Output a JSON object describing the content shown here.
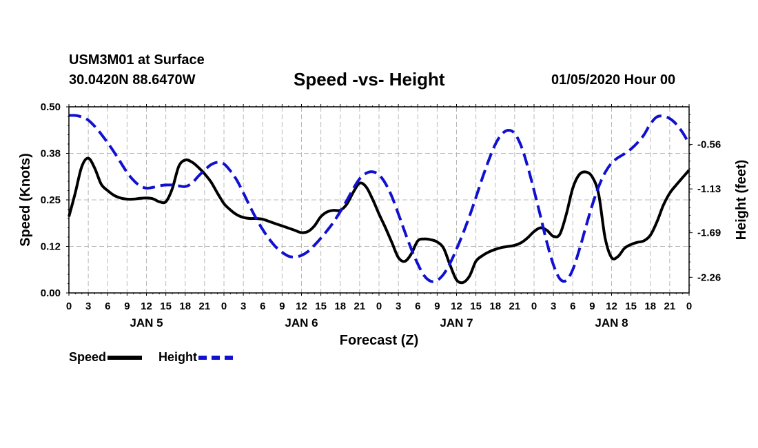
{
  "header": {
    "station": "USM3M01 at Surface",
    "coords": "30.0420N 88.6470W",
    "title": "Speed -vs- Height",
    "runtime": "01/05/2020 Hour 00"
  },
  "legend": {
    "speed_label": "Speed",
    "height_label": "Height"
  },
  "colors": {
    "speed": "#000000",
    "height": "#1010d0",
    "grid": "#b8b8b8"
  },
  "chart_data": {
    "type": "line",
    "title": "Speed -vs- Height",
    "xlabel": "Forecast (Z)",
    "ylabel": "Speed (Knots)",
    "y2label": "Height (feet)",
    "xlim": [
      0,
      96
    ],
    "ylim": [
      0,
      0.5
    ],
    "y2lim": [
      -2.46,
      -0.08
    ],
    "x_ticks": [
      0,
      3,
      6,
      9,
      12,
      15,
      18,
      21,
      24,
      27,
      30,
      33,
      36,
      39,
      42,
      45,
      48,
      51,
      54,
      57,
      60,
      63,
      66,
      69,
      72,
      75,
      78,
      81,
      84,
      87,
      90,
      93,
      96
    ],
    "x_tick_labels": [
      "0",
      "3",
      "6",
      "9",
      "12",
      "15",
      "18",
      "21",
      "0",
      "3",
      "6",
      "9",
      "12",
      "15",
      "18",
      "21",
      "0",
      "3",
      "6",
      "9",
      "12",
      "15",
      "18",
      "21",
      "0",
      "3",
      "6",
      "9",
      "12",
      "15",
      "18",
      "21",
      "0"
    ],
    "day_labels": [
      {
        "x": 12,
        "label": "JAN 5"
      },
      {
        "x": 36,
        "label": "JAN 6"
      },
      {
        "x": 60,
        "label": "JAN 7"
      },
      {
        "x": 84,
        "label": "JAN 8"
      }
    ],
    "y_ticks": [
      0.0,
      0.125,
      0.25,
      0.375,
      0.5
    ],
    "y_tick_labels": [
      "0.00",
      "0.12",
      "0.25",
      "0.38",
      "0.50"
    ],
    "y2_ticks": [
      -2.26,
      -1.69,
      -1.13,
      -0.56
    ],
    "y2_tick_labels": [
      "-2.26",
      "-1.69",
      "-1.13",
      "-0.56"
    ],
    "grid": true,
    "legend_position": "bottom-left",
    "series": [
      {
        "name": "Speed",
        "axis": "left",
        "style": "solid",
        "points": [
          [
            0,
            0.205
          ],
          [
            1,
            0.27
          ],
          [
            2,
            0.34
          ],
          [
            3,
            0.362
          ],
          [
            4,
            0.335
          ],
          [
            5,
            0.292
          ],
          [
            6,
            0.275
          ],
          [
            7,
            0.262
          ],
          [
            8,
            0.255
          ],
          [
            9,
            0.252
          ],
          [
            10,
            0.252
          ],
          [
            11,
            0.254
          ],
          [
            12,
            0.255
          ],
          [
            13,
            0.253
          ],
          [
            14,
            0.245
          ],
          [
            15,
            0.245
          ],
          [
            16,
            0.28
          ],
          [
            17,
            0.34
          ],
          [
            18,
            0.357
          ],
          [
            19,
            0.352
          ],
          [
            20,
            0.338
          ],
          [
            21,
            0.32
          ],
          [
            22,
            0.298
          ],
          [
            23,
            0.268
          ],
          [
            24,
            0.24
          ],
          [
            25,
            0.223
          ],
          [
            26,
            0.21
          ],
          [
            27,
            0.203
          ],
          [
            28,
            0.2
          ],
          [
            29,
            0.2
          ],
          [
            30,
            0.198
          ],
          [
            31,
            0.192
          ],
          [
            32,
            0.186
          ],
          [
            33,
            0.18
          ],
          [
            34,
            0.174
          ],
          [
            35,
            0.168
          ],
          [
            36,
            0.162
          ],
          [
            37,
            0.165
          ],
          [
            38,
            0.18
          ],
          [
            39,
            0.205
          ],
          [
            40,
            0.218
          ],
          [
            41,
            0.222
          ],
          [
            42,
            0.222
          ],
          [
            43,
            0.238
          ],
          [
            44,
            0.27
          ],
          [
            45,
            0.295
          ],
          [
            46,
            0.285
          ],
          [
            47,
            0.252
          ],
          [
            48,
            0.212
          ],
          [
            49,
            0.175
          ],
          [
            50,
            0.135
          ],
          [
            51,
            0.095
          ],
          [
            52,
            0.085
          ],
          [
            53,
            0.105
          ],
          [
            54,
            0.14
          ],
          [
            55,
            0.145
          ],
          [
            56,
            0.143
          ],
          [
            57,
            0.137
          ],
          [
            58,
            0.12
          ],
          [
            59,
            0.075
          ],
          [
            60,
            0.035
          ],
          [
            61,
            0.028
          ],
          [
            62,
            0.045
          ],
          [
            63,
            0.085
          ],
          [
            64,
            0.1
          ],
          [
            65,
            0.11
          ],
          [
            66,
            0.117
          ],
          [
            67,
            0.122
          ],
          [
            68,
            0.125
          ],
          [
            69,
            0.128
          ],
          [
            70,
            0.135
          ],
          [
            71,
            0.148
          ],
          [
            72,
            0.165
          ],
          [
            73,
            0.175
          ],
          [
            74,
            0.168
          ],
          [
            75,
            0.152
          ],
          [
            76,
            0.158
          ],
          [
            77,
            0.212
          ],
          [
            78,
            0.282
          ],
          [
            79,
            0.318
          ],
          [
            80,
            0.325
          ],
          [
            81,
            0.312
          ],
          [
            82,
            0.265
          ],
          [
            83,
            0.148
          ],
          [
            84,
            0.095
          ],
          [
            85,
            0.098
          ],
          [
            86,
            0.12
          ],
          [
            87,
            0.13
          ],
          [
            88,
            0.136
          ],
          [
            89,
            0.14
          ],
          [
            90,
            0.155
          ],
          [
            91,
            0.19
          ],
          [
            92,
            0.235
          ],
          [
            93,
            0.268
          ],
          [
            94,
            0.29
          ],
          [
            95,
            0.31
          ],
          [
            96,
            0.33
          ]
        ]
      },
      {
        "name": "Height",
        "axis": "right",
        "style": "dashed",
        "points": [
          [
            0,
            -0.19
          ],
          [
            1,
            -0.19
          ],
          [
            2,
            -0.21
          ],
          [
            3,
            -0.25
          ],
          [
            4,
            -0.33
          ],
          [
            5,
            -0.43
          ],
          [
            6,
            -0.54
          ],
          [
            7,
            -0.66
          ],
          [
            8,
            -0.79
          ],
          [
            9,
            -0.92
          ],
          [
            10,
            -1.02
          ],
          [
            11,
            -1.09
          ],
          [
            12,
            -1.12
          ],
          [
            13,
            -1.11
          ],
          [
            14,
            -1.09
          ],
          [
            15,
            -1.08
          ],
          [
            16,
            -1.08
          ],
          [
            17,
            -1.09
          ],
          [
            18,
            -1.1
          ],
          [
            19,
            -1.06
          ],
          [
            20,
            -0.97
          ],
          [
            21,
            -0.89
          ],
          [
            22,
            -0.82
          ],
          [
            23,
            -0.79
          ],
          [
            24,
            -0.81
          ],
          [
            25,
            -0.9
          ],
          [
            26,
            -1.02
          ],
          [
            27,
            -1.18
          ],
          [
            28,
            -1.35
          ],
          [
            29,
            -1.51
          ],
          [
            30,
            -1.65
          ],
          [
            31,
            -1.77
          ],
          [
            32,
            -1.87
          ],
          [
            33,
            -1.94
          ],
          [
            34,
            -1.99
          ],
          [
            35,
            -2.0
          ],
          [
            36,
            -1.98
          ],
          [
            37,
            -1.93
          ],
          [
            38,
            -1.85
          ],
          [
            39,
            -1.76
          ],
          [
            40,
            -1.66
          ],
          [
            41,
            -1.55
          ],
          [
            42,
            -1.42
          ],
          [
            43,
            -1.28
          ],
          [
            44,
            -1.13
          ],
          [
            45,
            -1.0
          ],
          [
            46,
            -0.93
          ],
          [
            47,
            -0.91
          ],
          [
            48,
            -0.95
          ],
          [
            49,
            -1.06
          ],
          [
            50,
            -1.23
          ],
          [
            51,
            -1.45
          ],
          [
            52,
            -1.68
          ],
          [
            53,
            -1.9
          ],
          [
            54,
            -2.09
          ],
          [
            55,
            -2.24
          ],
          [
            56,
            -2.31
          ],
          [
            57,
            -2.3
          ],
          [
            58,
            -2.22
          ],
          [
            59,
            -2.08
          ],
          [
            60,
            -1.9
          ],
          [
            61,
            -1.7
          ],
          [
            62,
            -1.48
          ],
          [
            63,
            -1.24
          ],
          [
            64,
            -0.99
          ],
          [
            65,
            -0.76
          ],
          [
            66,
            -0.56
          ],
          [
            67,
            -0.43
          ],
          [
            68,
            -0.38
          ],
          [
            69,
            -0.42
          ],
          [
            70,
            -0.58
          ],
          [
            71,
            -0.84
          ],
          [
            72,
            -1.15
          ],
          [
            73,
            -1.48
          ],
          [
            74,
            -1.82
          ],
          [
            75,
            -2.1
          ],
          [
            76,
            -2.28
          ],
          [
            77,
            -2.3
          ],
          [
            78,
            -2.16
          ],
          [
            79,
            -1.91
          ],
          [
            80,
            -1.62
          ],
          [
            81,
            -1.34
          ],
          [
            82,
            -1.1
          ],
          [
            83,
            -0.92
          ],
          [
            84,
            -0.8
          ],
          [
            85,
            -0.73
          ],
          [
            86,
            -0.68
          ],
          [
            87,
            -0.62
          ],
          [
            88,
            -0.54
          ],
          [
            89,
            -0.44
          ],
          [
            90,
            -0.3
          ],
          [
            91,
            -0.21
          ],
          [
            92,
            -0.2
          ],
          [
            93,
            -0.23
          ],
          [
            94,
            -0.3
          ],
          [
            95,
            -0.41
          ],
          [
            96,
            -0.55
          ]
        ]
      }
    ]
  }
}
